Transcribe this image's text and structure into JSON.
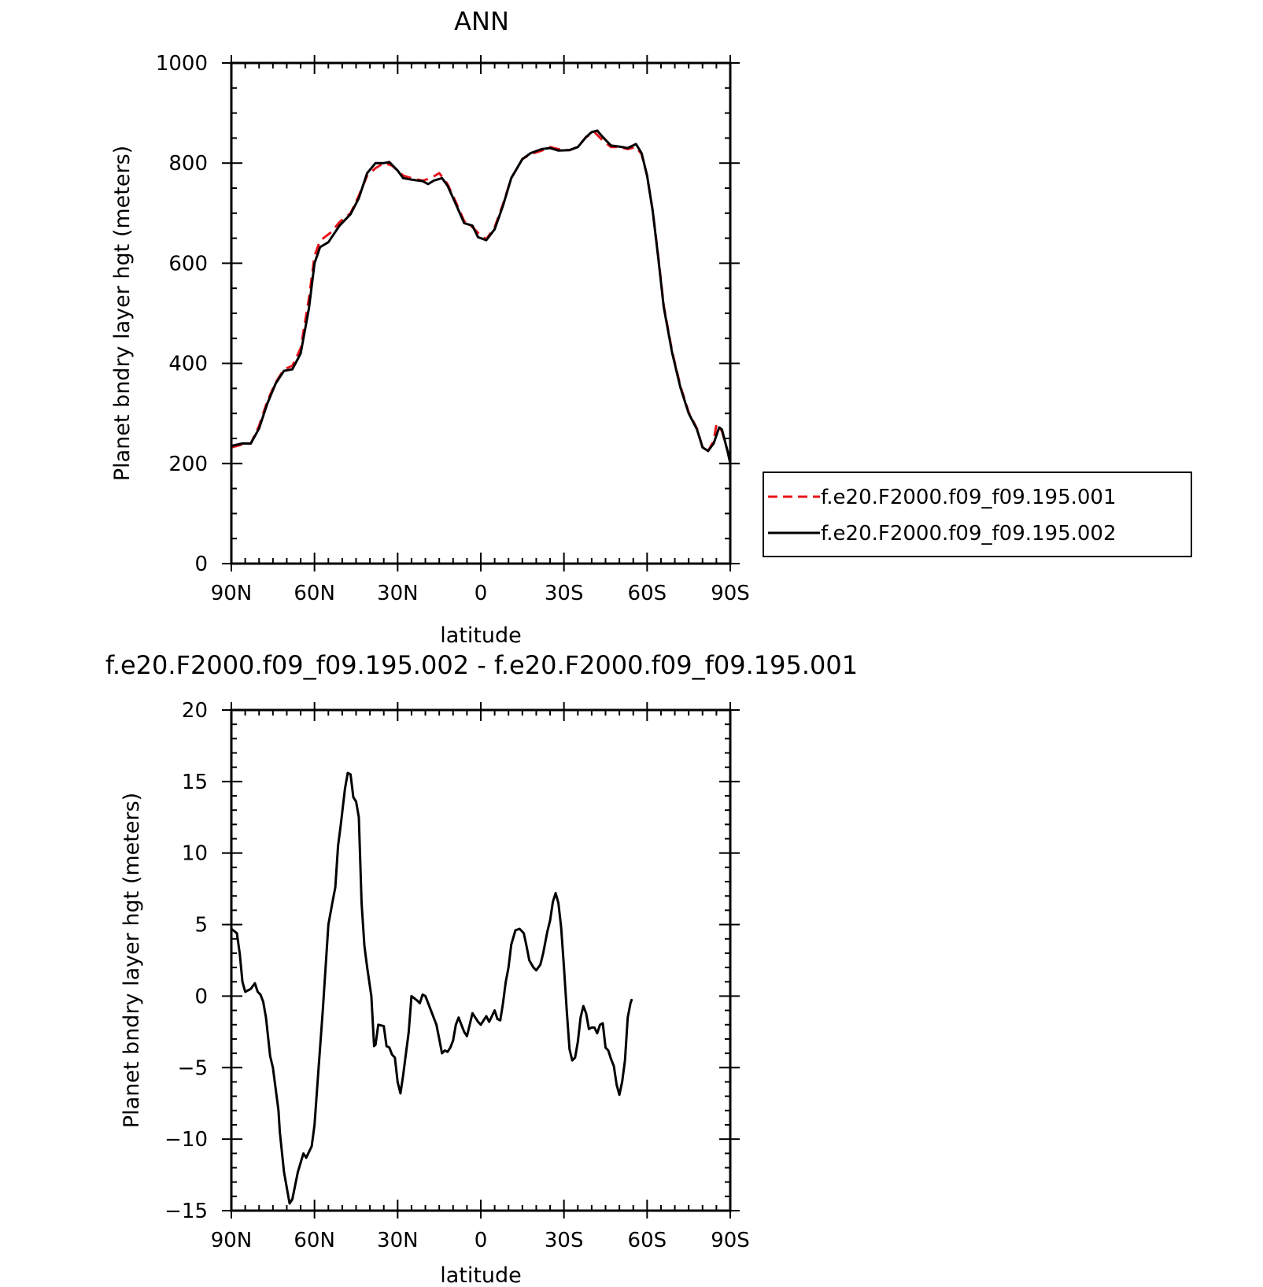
{
  "chart_data": [
    {
      "type": "line",
      "title": "ANN",
      "xlabel": "latitude",
      "ylabel": "Planet bndry layer hgt (meters)",
      "xlim": [
        90,
        -90
      ],
      "ylim": [
        0,
        1000
      ],
      "x_ticks": [
        90,
        60,
        30,
        0,
        -30,
        -60,
        -90
      ],
      "x_tick_labels": [
        "90N",
        "60N",
        "30N",
        "0",
        "30S",
        "60S",
        "90S"
      ],
      "y_ticks": [
        0,
        200,
        400,
        600,
        800,
        1000
      ],
      "y_tick_labels": [
        "0",
        "200",
        "400",
        "600",
        "800",
        "1000"
      ],
      "legend_position": "right",
      "series": [
        {
          "name": "f.e20.F2000.f09_f09.195.001",
          "color": "#e8141a",
          "dash": "dashed",
          "points": [
            [
              90,
              232
            ],
            [
              86,
              238
            ],
            [
              83,
              240
            ],
            [
              80,
              275
            ],
            [
              77,
              325
            ],
            [
              74,
              362
            ],
            [
              71,
              388
            ],
            [
              68,
              395
            ],
            [
              65,
              430
            ],
            [
              62,
              530
            ],
            [
              60,
              615
            ],
            [
              58,
              645
            ],
            [
              54,
              662
            ],
            [
              51,
              682
            ],
            [
              47,
              700
            ],
            [
              44,
              735
            ],
            [
              41,
              775
            ],
            [
              38,
              790
            ],
            [
              35,
              800
            ],
            [
              32,
              795
            ],
            [
              28,
              775
            ],
            [
              25,
              770
            ],
            [
              21,
              765
            ],
            [
              18,
              770
            ],
            [
              15,
              780
            ],
            [
              12,
              758
            ],
            [
              9,
              722
            ],
            [
              6,
              684
            ],
            [
              3,
              672
            ],
            [
              0,
              655
            ],
            [
              -2,
              648
            ],
            [
              -5,
              672
            ],
            [
              -8,
              718
            ],
            [
              -11,
              770
            ],
            [
              -15,
              808
            ],
            [
              -18,
              818
            ],
            [
              -22,
              825
            ],
            [
              -25,
              832
            ],
            [
              -28,
              828
            ],
            [
              -32,
              826
            ],
            [
              -35,
              832
            ],
            [
              -38,
              852
            ],
            [
              -41,
              862
            ],
            [
              -44,
              845
            ],
            [
              -47,
              832
            ],
            [
              -50,
              832
            ],
            [
              -53,
              828
            ],
            [
              -56,
              832
            ],
            [
              -58,
              818
            ],
            [
              -60,
              775
            ],
            [
              -62,
              705
            ],
            [
              -64,
              615
            ],
            [
              -66,
              515
            ],
            [
              -69,
              425
            ],
            [
              -72,
              355
            ],
            [
              -75,
              302
            ],
            [
              -78,
              270
            ],
            [
              -80,
              232
            ],
            [
              -82,
              225
            ],
            [
              -84,
              245
            ],
            [
              -85,
              278
            ],
            [
              -87,
              265
            ],
            [
              -89,
              225
            ],
            [
              -90,
              205
            ]
          ]
        },
        {
          "name": "f.e20.F2000.f09_f09.195.002",
          "color": "#000000",
          "dash": "solid",
          "points": [
            [
              90,
              235
            ],
            [
              86,
              240
            ],
            [
              83,
              240
            ],
            [
              80,
              270
            ],
            [
              77,
              320
            ],
            [
              74,
              360
            ],
            [
              71,
              385
            ],
            [
              68,
              388
            ],
            [
              65,
              420
            ],
            [
              62,
              510
            ],
            [
              60,
              600
            ],
            [
              58,
              632
            ],
            [
              55,
              642
            ],
            [
              51,
              675
            ],
            [
              47,
              698
            ],
            [
              44,
              730
            ],
            [
              41,
              780
            ],
            [
              38,
              800
            ],
            [
              35,
              800
            ],
            [
              33,
              802
            ],
            [
              30,
              785
            ],
            [
              28,
              770
            ],
            [
              25,
              767
            ],
            [
              21,
              764
            ],
            [
              19,
              758
            ],
            [
              17,
              765
            ],
            [
              14,
              770
            ],
            [
              12,
              755
            ],
            [
              9,
              718
            ],
            [
              6,
              680
            ],
            [
              3,
              675
            ],
            [
              1,
              652
            ],
            [
              -2,
              646
            ],
            [
              -5,
              668
            ],
            [
              -8,
              715
            ],
            [
              -11,
              770
            ],
            [
              -15,
              808
            ],
            [
              -18,
              820
            ],
            [
              -22,
              828
            ],
            [
              -25,
              830
            ],
            [
              -28,
              825
            ],
            [
              -32,
              826
            ],
            [
              -35,
              832
            ],
            [
              -38,
              852
            ],
            [
              -40,
              862
            ],
            [
              -42,
              865
            ],
            [
              -44,
              852
            ],
            [
              -47,
              835
            ],
            [
              -50,
              833
            ],
            [
              -53,
              830
            ],
            [
              -56,
              838
            ],
            [
              -58,
              820
            ],
            [
              -60,
              775
            ],
            [
              -62,
              705
            ],
            [
              -64,
              612
            ],
            [
              -66,
              512
            ],
            [
              -69,
              422
            ],
            [
              -72,
              352
            ],
            [
              -75,
              300
            ],
            [
              -78,
              268
            ],
            [
              -80,
              232
            ],
            [
              -82,
              225
            ],
            [
              -84,
              240
            ],
            [
              -86,
              272
            ],
            [
              -87,
              268
            ],
            [
              -89,
              225
            ],
            [
              -90,
              200
            ]
          ]
        }
      ]
    },
    {
      "type": "line",
      "title": "f.e20.F2000.f09_f09.195.002 - f.e20.F2000.f09_f09.195.001",
      "xlabel": "latitude",
      "ylabel": "Planet bndry layer hgt (meters)",
      "xlim": [
        90,
        -90
      ],
      "ylim": [
        -15,
        20
      ],
      "x_ticks": [
        90,
        60,
        30,
        0,
        -30,
        -60,
        -90
      ],
      "x_tick_labels": [
        "90N",
        "60N",
        "30N",
        "0",
        "30S",
        "60S",
        "90S"
      ],
      "y_ticks": [
        -15,
        -10,
        -5,
        0,
        5,
        10,
        15,
        20
      ],
      "y_tick_labels": [
        "−15",
        "−10",
        "−5",
        "0",
        "5",
        "10",
        "15",
        "20"
      ],
      "series": [
        {
          "color": "#000000",
          "dash": "solid",
          "points": [
            [
              90,
              4.7
            ],
            [
              88,
              4.4
            ],
            [
              87,
              3.0
            ],
            [
              86,
              1.0
            ],
            [
              85,
              0.3
            ],
            [
              83,
              0.5
            ],
            [
              81.5,
              0.9
            ],
            [
              80.5,
              0.3
            ],
            [
              79.5,
              0.1
            ],
            [
              78.5,
              -0.4
            ],
            [
              77.5,
              -1.5
            ],
            [
              76,
              -4.2
            ],
            [
              75,
              -5.0
            ],
            [
              73,
              -8.0
            ],
            [
              72.5,
              -9.5
            ],
            [
              71,
              -12.3
            ],
            [
              69,
              -14.5
            ],
            [
              68,
              -14.2
            ],
            [
              66,
              -12.3
            ],
            [
              64,
              -11.0
            ],
            [
              63,
              -11.3
            ],
            [
              61,
              -10.5
            ],
            [
              60,
              -9.0
            ],
            [
              58.5,
              -5.0
            ],
            [
              57,
              -1.0
            ],
            [
              55,
              5.0
            ],
            [
              53.5,
              6.6
            ],
            [
              52.5,
              7.6
            ],
            [
              51.5,
              10.5
            ],
            [
              50.5,
              12.0
            ],
            [
              49,
              14.5
            ],
            [
              48,
              15.6
            ],
            [
              47,
              15.5
            ],
            [
              46,
              13.9
            ],
            [
              45,
              13.6
            ],
            [
              44,
              12.5
            ],
            [
              43,
              6.5
            ],
            [
              42,
              3.5
            ],
            [
              41,
              2.0
            ],
            [
              39.5,
              0.0
            ],
            [
              38.5,
              -3.5
            ],
            [
              38,
              -3.4
            ],
            [
              37,
              -2.0
            ],
            [
              35,
              -2.1
            ],
            [
              34,
              -3.5
            ],
            [
              33,
              -3.6
            ],
            [
              32,
              -4.1
            ],
            [
              31,
              -4.3
            ],
            [
              30,
              -6.0
            ],
            [
              29,
              -6.8
            ],
            [
              28,
              -5.5
            ],
            [
              27,
              -4.0
            ],
            [
              26,
              -2.5
            ],
            [
              25,
              0.0
            ],
            [
              23,
              -0.3
            ],
            [
              22,
              -0.5
            ],
            [
              21,
              0.1
            ],
            [
              20,
              0.0
            ],
            [
              18,
              -1.0
            ],
            [
              16,
              -2.0
            ],
            [
              15,
              -3.0
            ],
            [
              14,
              -4.0
            ],
            [
              13,
              -3.8
            ],
            [
              12,
              -3.9
            ],
            [
              11,
              -3.6
            ],
            [
              10,
              -3.1
            ],
            [
              9,
              -2.0
            ],
            [
              8,
              -1.5
            ],
            [
              7,
              -2.0
            ],
            [
              6,
              -2.5
            ],
            [
              5,
              -2.8
            ],
            [
              4,
              -2.0
            ],
            [
              3,
              -1.2
            ],
            [
              2,
              -1.5
            ],
            [
              1,
              -1.8
            ],
            [
              0,
              -2.0
            ],
            [
              -1,
              -1.7
            ],
            [
              -2,
              -1.4
            ],
            [
              -3,
              -1.8
            ],
            [
              -4,
              -1.4
            ],
            [
              -5,
              -1.0
            ],
            [
              -6,
              -1.6
            ],
            [
              -7,
              -1.7
            ],
            [
              -8,
              -0.5
            ],
            [
              -9,
              1.0
            ],
            [
              -10,
              2.0
            ],
            [
              -11,
              3.6
            ],
            [
              -12.5,
              4.6
            ],
            [
              -14,
              4.7
            ],
            [
              -15.5,
              4.4
            ],
            [
              -16.5,
              3.5
            ],
            [
              -17.5,
              2.5
            ],
            [
              -19,
              2.0
            ],
            [
              -20,
              1.8
            ],
            [
              -21.5,
              2.2
            ],
            [
              -22.5,
              3.0
            ],
            [
              -24,
              4.5
            ],
            [
              -25,
              5.3
            ],
            [
              -26,
              6.6
            ],
            [
              -27,
              7.2
            ],
            [
              -28,
              6.5
            ],
            [
              -29,
              4.8
            ],
            [
              -30,
              2.0
            ],
            [
              -31,
              -1.0
            ],
            [
              -32,
              -3.7
            ],
            [
              -33,
              -4.5
            ],
            [
              -34,
              -4.3
            ],
            [
              -35,
              -3.2
            ],
            [
              -36,
              -1.5
            ],
            [
              -37,
              -0.7
            ],
            [
              -38,
              -1.2
            ],
            [
              -39,
              -2.3
            ],
            [
              -40,
              -2.2
            ],
            [
              -41,
              -2.2
            ],
            [
              -42,
              -2.6
            ],
            [
              -43,
              -2.0
            ],
            [
              -44,
              -1.9
            ],
            [
              -45,
              -3.6
            ],
            [
              -46,
              -3.8
            ],
            [
              -47,
              -4.4
            ],
            [
              -48,
              -4.9
            ],
            [
              -49,
              -6.2
            ],
            [
              -50,
              -6.9
            ],
            [
              -51,
              -6.0
            ],
            [
              -52,
              -4.5
            ],
            [
              -53,
              -1.5
            ],
            [
              -54,
              -0.5
            ],
            [
              -54.5,
              -0.2
            ]
          ]
        }
      ]
    }
  ]
}
